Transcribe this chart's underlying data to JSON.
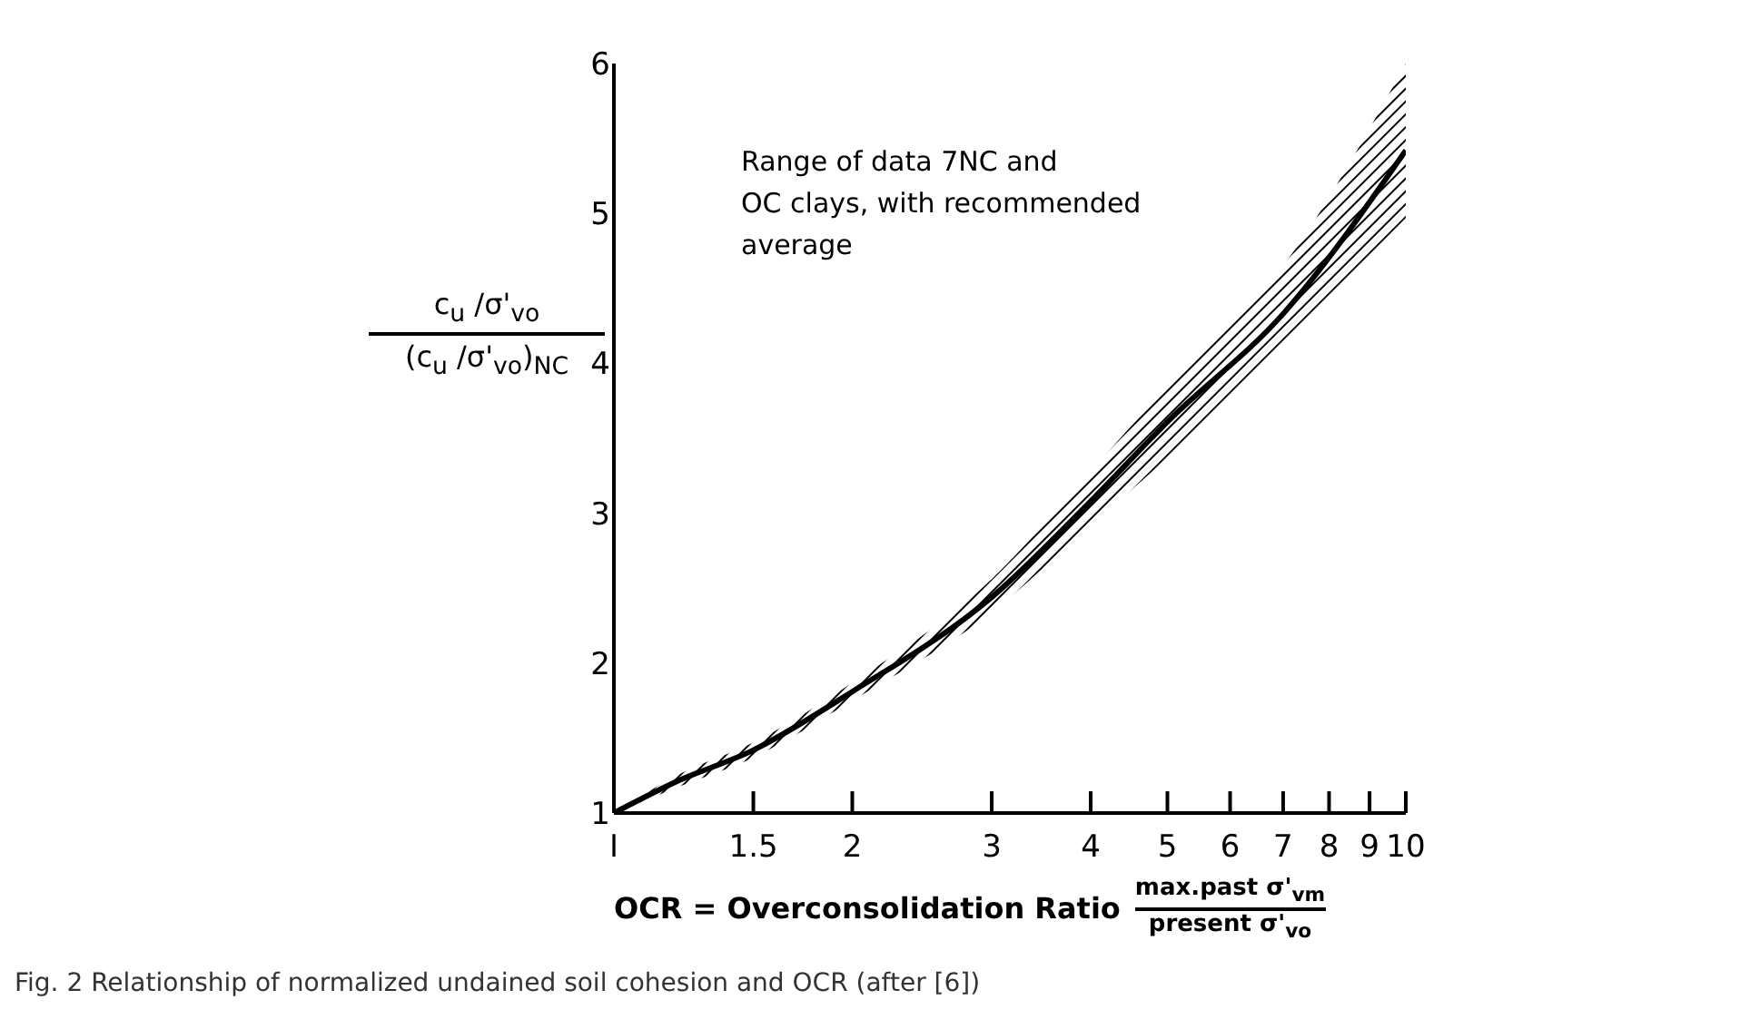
{
  "chart_data": {
    "type": "line",
    "ylabel": "c$_{u}$ /σ'$_{vo}$\n(c$_{u}$ /σ'$_{vo}$)$_{NC}$",
    "xlabel": "OCR = Overconsolidation Ratio\nmax.past σ'$_{vm}$\npresent σ'$_{vo}$",
    "annotations": [
      "Range of data 7NC and\nOC clays, with recommended\naverage",
      "Fig. 2 Relationship of normalized undained soil cohesion and OCR (after [6])"
    ],
    "x": [
      1,
      1.2,
      1.5,
      2,
      3,
      4,
      5,
      7,
      10
    ],
    "series": [
      {
        "color": "#000000",
        "values": [
          1,
          1.21,
          1.42,
          1.81,
          2.44,
          3.08,
          3.61,
          4.33,
          5.42
        ],
        "lower": [
          1,
          1.17,
          1.37,
          1.75,
          2.34,
          2.92,
          3.37,
          4.13,
          4.97
        ],
        "upper": [
          1,
          1.25,
          1.47,
          1.87,
          2.56,
          3.28,
          3.85,
          4.65,
          6.0
        ]
      }
    ],
    "log": "x",
    "xlim": [
      1,
      10
    ],
    "xticks": [
      {
        "value": 1,
        "label": "I"
      },
      1.5,
      2,
      3,
      4,
      5,
      6,
      7,
      8,
      9,
      10
    ],
    "ylim": [
      1,
      6
    ],
    "yticks": [
      1,
      2,
      3,
      4,
      5,
      6
    ],
    "grid": false,
    "legend": false,
    "marker": "none",
    "line_style": "solid"
  }
}
